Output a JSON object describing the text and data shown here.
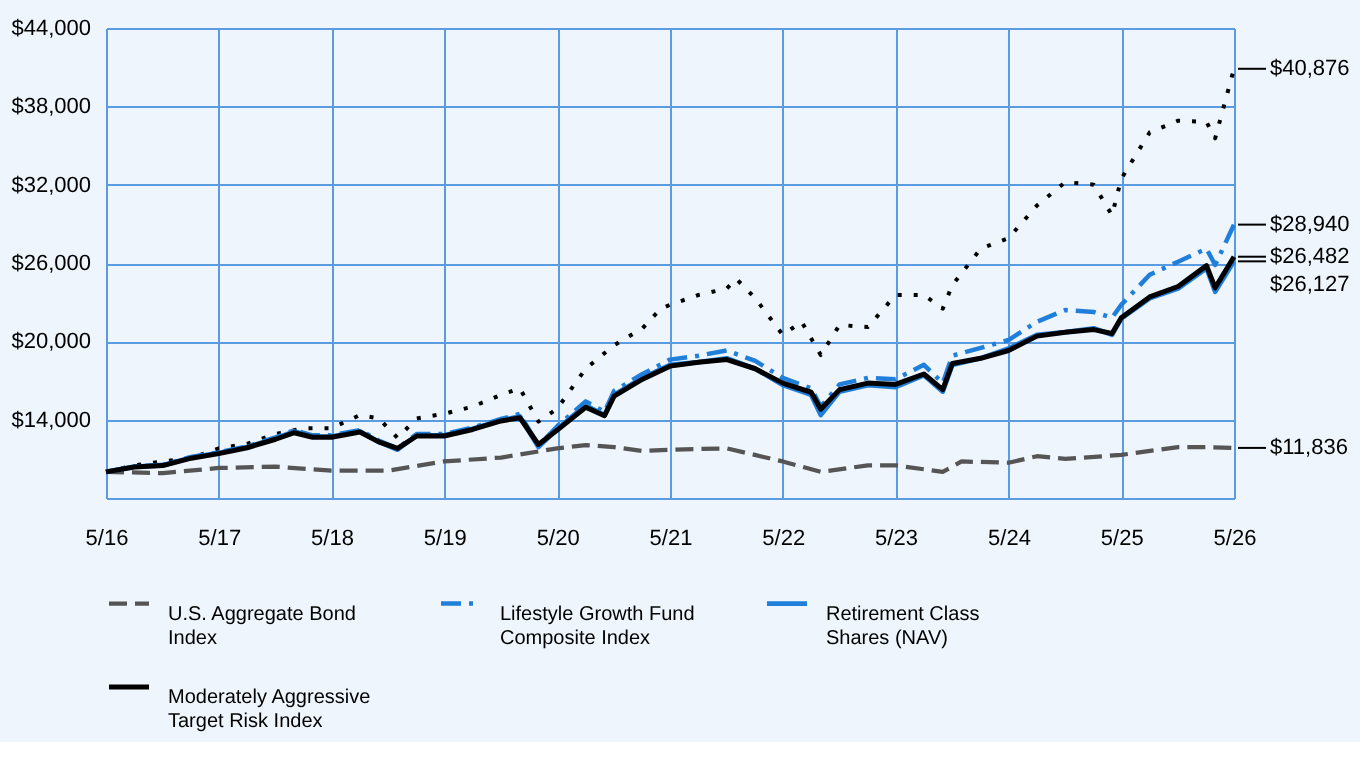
{
  "chart_data": {
    "type": "line",
    "legend": "bottom",
    "grid": true,
    "xlim": [
      "2016-05",
      "2026-05"
    ],
    "xticks": [
      {
        "value": "2016-05",
        "label": "5/16"
      },
      {
        "value": "2017-05",
        "label": "5/17"
      },
      {
        "value": "2018-05",
        "label": "5/18"
      },
      {
        "value": "2019-05",
        "label": "5/19"
      },
      {
        "value": "2020-05",
        "label": "5/20"
      },
      {
        "value": "2021-05",
        "label": "5/21"
      },
      {
        "value": "2022-05",
        "label": "5/22"
      },
      {
        "value": "2023-05",
        "label": "5/23"
      },
      {
        "value": "2024-05",
        "label": "5/24"
      },
      {
        "value": "2025-05",
        "label": "5/25"
      },
      {
        "value": "2026-05",
        "label": "5/26"
      }
    ],
    "ylim": [
      8000,
      44000
    ],
    "yticks": [
      {
        "value": 14000,
        "label": "$14,000"
      },
      {
        "value": 20000,
        "label": "$20,000"
      },
      {
        "value": 26000,
        "label": "$26,000"
      },
      {
        "value": 32000,
        "label": "$32,000"
      },
      {
        "value": 38000,
        "label": "$38,000"
      },
      {
        "value": 44000,
        "label": "$44,000"
      }
    ],
    "series": [
      {
        "color": "#000000",
        "line_style": "dotted",
        "x": [
          "2016-05",
          "2016-08",
          "2016-11",
          "2017-02",
          "2017-05",
          "2017-08",
          "2017-11",
          "2018-02",
          "2018-05",
          "2018-08",
          "2018-10",
          "2018-12",
          "2019-02",
          "2019-05",
          "2019-08",
          "2019-11",
          "2020-01",
          "2020-03",
          "2020-05",
          "2020-08",
          "2020-11",
          "2021-02",
          "2021-04",
          "2021-05",
          "2021-08",
          "2021-11",
          "2021-12",
          "2022-02",
          "2022-05",
          "2022-07",
          "2022-09",
          "2022-11",
          "2023-02",
          "2023-05",
          "2023-08",
          "2023-10",
          "2023-11",
          "2024-02",
          "2024-05",
          "2024-08",
          "2024-11",
          "2025-02",
          "2025-04",
          "2025-05",
          "2025-08",
          "2025-11",
          "2026-02",
          "2026-03",
          "2026-05"
        ],
        "values": [
          10000,
          10500,
          10800,
          11050,
          11800,
          12150,
          12900,
          13350,
          13350,
          14350,
          14100,
          12600,
          14100,
          14450,
          15000,
          15900,
          16400,
          13850,
          14850,
          17900,
          19700,
          21000,
          22500,
          22800,
          23550,
          24050,
          24800,
          23300,
          20500,
          21500,
          18950,
          21250,
          21100,
          23550,
          23550,
          22500,
          24300,
          27100,
          27900,
          30400,
          32200,
          32000,
          29650,
          32450,
          36000,
          36900,
          36800,
          35550,
          40876
        ]
      },
      {
        "name": "U.S. Aggregate Bond Index",
        "color": "#555555",
        "line_style": "dashed",
        "x": [
          "2016-05",
          "2016-11",
          "2017-05",
          "2017-11",
          "2018-05",
          "2018-11",
          "2019-05",
          "2019-11",
          "2020-05",
          "2020-08",
          "2020-11",
          "2021-02",
          "2021-05",
          "2021-11",
          "2022-05",
          "2022-09",
          "2023-02",
          "2023-05",
          "2023-10",
          "2023-12",
          "2024-05",
          "2024-08",
          "2024-11",
          "2025-05",
          "2025-11",
          "2026-02",
          "2026-05"
        ],
        "values": [
          10000,
          9900,
          10300,
          10400,
          10100,
          10100,
          10800,
          11100,
          11800,
          12050,
          11900,
          11600,
          11700,
          11800,
          10800,
          10000,
          10500,
          10500,
          10000,
          10800,
          10700,
          11200,
          11000,
          11300,
          11900,
          11900,
          11836
        ]
      },
      {
        "name": "Lifestyle Growth Fund Composite Index",
        "color": "#1f7fdb",
        "line_style": "dashdot",
        "x": [
          "2016-05",
          "2016-08",
          "2016-11",
          "2017-02",
          "2017-05",
          "2017-08",
          "2017-11",
          "2018-01",
          "2018-03",
          "2018-05",
          "2018-08",
          "2018-10",
          "2018-12",
          "2019-02",
          "2019-05",
          "2019-08",
          "2019-11",
          "2020-01",
          "2020-03",
          "2020-05",
          "2020-08",
          "2020-10",
          "2020-11",
          "2021-02",
          "2021-05",
          "2021-08",
          "2021-11",
          "2022-02",
          "2022-05",
          "2022-08",
          "2022-09",
          "2022-11",
          "2023-02",
          "2023-05",
          "2023-08",
          "2023-10",
          "2023-11",
          "2024-02",
          "2024-05",
          "2024-08",
          "2024-11",
          "2025-02",
          "2025-04",
          "2025-05",
          "2025-08",
          "2025-11",
          "2026-02",
          "2026-03",
          "2026-05"
        ],
        "values": [
          10000,
          10420,
          10550,
          11150,
          11500,
          11950,
          12650,
          13200,
          12800,
          12800,
          13200,
          12400,
          11800,
          12900,
          12900,
          13400,
          14050,
          14450,
          12000,
          13500,
          15400,
          14600,
          16200,
          17500,
          18600,
          18900,
          19300,
          18500,
          17200,
          16400,
          15000,
          16700,
          17200,
          17100,
          18200,
          16800,
          18900,
          19500,
          20100,
          21500,
          22400,
          22250,
          21800,
          22800,
          25100,
          26100,
          27100,
          25850,
          28940
        ]
      },
      {
        "name": "Retirement Class Shares (NAV)",
        "color": "#1f7fdb",
        "line_style": "solid",
        "x": [
          "2016-05",
          "2016-08",
          "2016-11",
          "2017-02",
          "2017-05",
          "2017-08",
          "2017-11",
          "2018-01",
          "2018-03",
          "2018-05",
          "2018-08",
          "2018-10",
          "2018-12",
          "2019-02",
          "2019-05",
          "2019-08",
          "2019-11",
          "2020-01",
          "2020-03",
          "2020-05",
          "2020-08",
          "2020-10",
          "2020-11",
          "2021-02",
          "2021-05",
          "2021-08",
          "2021-11",
          "2022-02",
          "2022-05",
          "2022-08",
          "2022-09",
          "2022-11",
          "2023-02",
          "2023-05",
          "2023-08",
          "2023-10",
          "2023-11",
          "2024-02",
          "2024-05",
          "2024-08",
          "2024-11",
          "2025-02",
          "2025-04",
          "2025-05",
          "2025-08",
          "2025-11",
          "2026-02",
          "2026-03",
          "2026-05"
        ],
        "values": [
          10000,
          10400,
          10500,
          11100,
          11450,
          11900,
          12570,
          13100,
          12700,
          12700,
          13100,
          12300,
          11700,
          12800,
          12800,
          13300,
          13950,
          14250,
          11900,
          13300,
          15100,
          14350,
          15900,
          17200,
          18200,
          18400,
          18700,
          17900,
          16650,
          15900,
          14350,
          16150,
          16650,
          16500,
          17400,
          16150,
          18200,
          18700,
          19450,
          20500,
          20700,
          21000,
          20500,
          21750,
          23300,
          24050,
          25600,
          23800,
          26127
        ]
      },
      {
        "name": "Moderately Aggressive Target Risk Index",
        "color": "#000000",
        "line_style": "solid",
        "x": [
          "2016-05",
          "2016-08",
          "2016-11",
          "2017-02",
          "2017-05",
          "2017-08",
          "2017-11",
          "2018-01",
          "2018-03",
          "2018-05",
          "2018-08",
          "2018-10",
          "2018-12",
          "2019-02",
          "2019-05",
          "2019-08",
          "2019-11",
          "2020-01",
          "2020-03",
          "2020-05",
          "2020-08",
          "2020-10",
          "2020-11",
          "2021-02",
          "2021-05",
          "2021-08",
          "2021-11",
          "2022-02",
          "2022-05",
          "2022-08",
          "2022-09",
          "2022-11",
          "2023-02",
          "2023-05",
          "2023-08",
          "2023-10",
          "2023-11",
          "2024-02",
          "2024-05",
          "2024-08",
          "2024-11",
          "2025-02",
          "2025-04",
          "2025-05",
          "2025-08",
          "2025-11",
          "2026-02",
          "2026-03",
          "2026-05"
        ],
        "values": [
          10000,
          10380,
          10480,
          11050,
          11400,
          11850,
          12500,
          13000,
          12650,
          12650,
          13050,
          12300,
          11800,
          12750,
          12750,
          13250,
          13900,
          14150,
          12100,
          13200,
          14950,
          14300,
          15800,
          17100,
          18100,
          18400,
          18600,
          17900,
          16800,
          16100,
          14800,
          16300,
          16800,
          16700,
          17500,
          16300,
          18300,
          18700,
          19300,
          20400,
          20700,
          20900,
          20600,
          21800,
          23400,
          24200,
          25800,
          24100,
          26482
        ]
      }
    ],
    "annotations": [
      {
        "text": "$40,876",
        "x": "2026-05",
        "y": 40876
      },
      {
        "text": "$28,940",
        "x": "2026-05",
        "y": 28940
      },
      {
        "text": "$26,482",
        "x": "2026-05",
        "y": 26482
      },
      {
        "text": "$26,127",
        "x": "2026-05",
        "y": 26127
      },
      {
        "text": "$11,836",
        "x": "2026-05",
        "y": 11836
      }
    ]
  }
}
